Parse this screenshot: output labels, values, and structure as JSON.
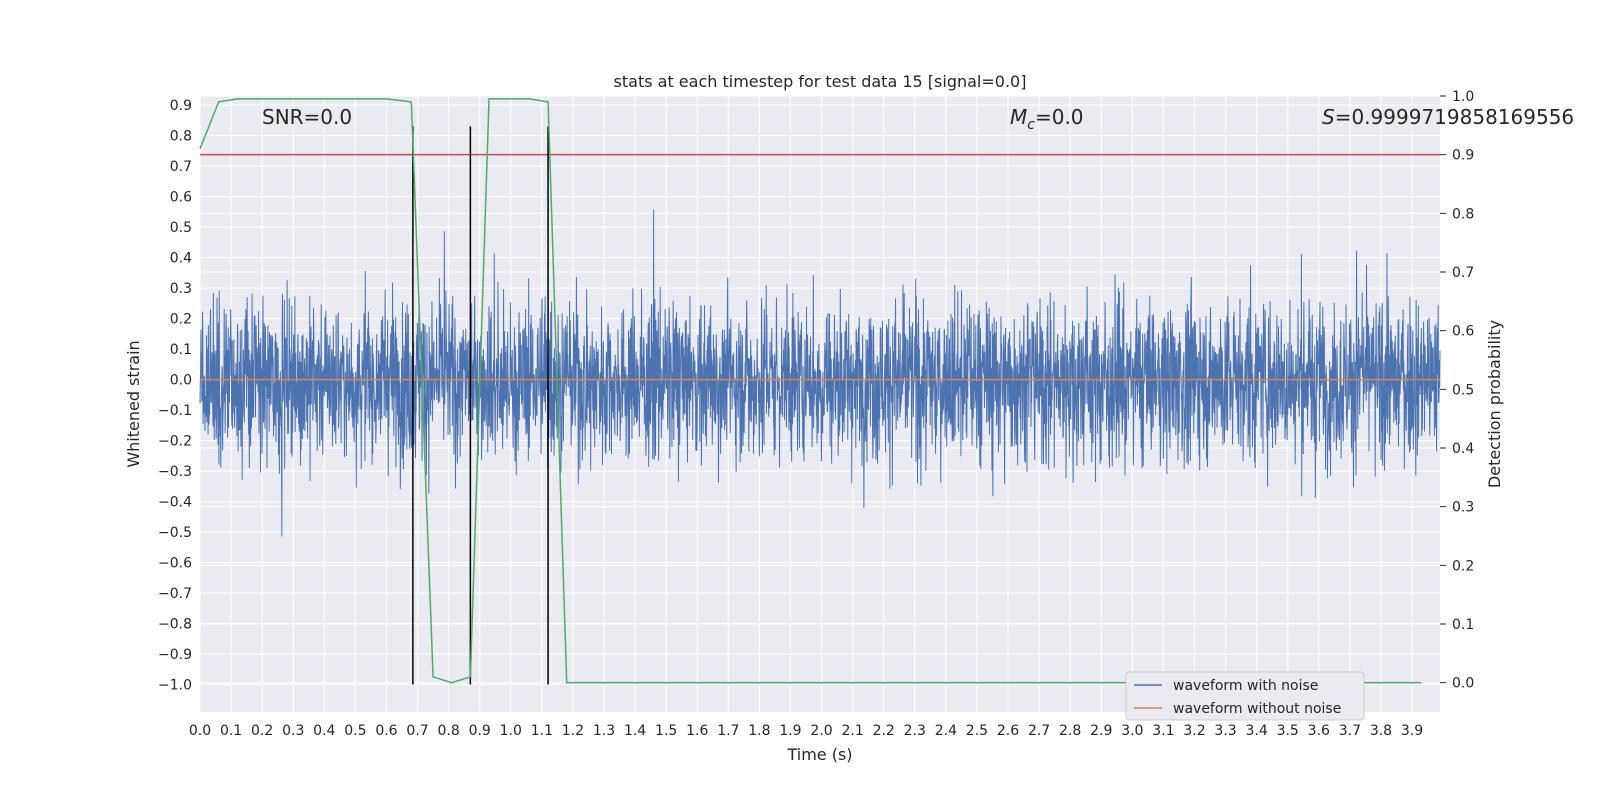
{
  "chart_data": {
    "type": "line",
    "title": "stats at each timestep for test data 15 [signal=0.0]",
    "xlabel": "Time (s)",
    "ylabel_left": "Whitened strain",
    "ylabel_right": "Detection probability",
    "xlim": [
      0.0,
      3.99
    ],
    "ylim_left": [
      -1.09,
      0.93
    ],
    "ylim_right": [
      -0.05,
      1.0
    ],
    "x_ticks": [
      "0.0",
      "0.1",
      "0.2",
      "0.3",
      "0.4",
      "0.5",
      "0.6",
      "0.7",
      "0.8",
      "0.9",
      "1.0",
      "1.1",
      "1.2",
      "1.3",
      "1.4",
      "1.5",
      "1.6",
      "1.7",
      "1.8",
      "1.9",
      "2.0",
      "2.1",
      "2.2",
      "2.3",
      "2.4",
      "2.5",
      "2.6",
      "2.7",
      "2.8",
      "2.9",
      "3.0",
      "3.1",
      "3.2",
      "3.3",
      "3.4",
      "3.5",
      "3.6",
      "3.7",
      "3.8",
      "3.9"
    ],
    "y_ticks_left": [
      "0.9",
      "0.8",
      "0.7",
      "0.6",
      "0.5",
      "0.4",
      "0.3",
      "0.2",
      "0.1",
      "0.0",
      "−0.1",
      "−0.2",
      "−0.3",
      "−0.4",
      "−0.5",
      "−0.6",
      "−0.7",
      "−0.8",
      "−0.9",
      "−1.0"
    ],
    "y_ticks_right": [
      "1.0",
      "0.9",
      "0.8",
      "0.7",
      "0.6",
      "0.5",
      "0.4",
      "0.3",
      "0.2",
      "0.1",
      "0.0"
    ],
    "annotations": {
      "snr": "SNR=0.0",
      "mc_symbol": "M",
      "mc_sub": "c",
      "mc_value": "=0.0",
      "s_symbol": "S",
      "s_value": "=0.9999719858169556"
    },
    "series": [
      {
        "name": "waveform with noise",
        "axis": "left",
        "color": "#4c72b0",
        "style": "noise",
        "amplitude_typical": 0.3,
        "amplitude_peak": 0.83,
        "x_range": [
          0.0,
          3.99
        ]
      },
      {
        "name": "waveform without noise",
        "axis": "left",
        "color": "#dd8452",
        "x": [
          0.0,
          3.99
        ],
        "y": [
          0.0,
          0.0
        ]
      },
      {
        "name": "detection probability",
        "axis": "right",
        "color": "#55a868",
        "x": [
          0.0,
          0.06,
          0.12,
          0.2,
          0.3,
          0.4,
          0.5,
          0.6,
          0.68,
          0.75,
          0.81,
          0.87,
          0.93,
          1.0,
          1.06,
          1.12,
          1.18,
          1.3,
          1.5,
          2.0,
          2.5,
          3.0,
          3.5,
          3.93
        ],
        "y": [
          0.91,
          0.99,
          0.995,
          0.995,
          0.995,
          0.995,
          0.995,
          0.995,
          0.99,
          0.01,
          0.0,
          0.01,
          0.995,
          0.995,
          0.995,
          0.99,
          0.0,
          0.0,
          0.0,
          0.0,
          0.0,
          0.0,
          0.0,
          0.0
        ]
      }
    ],
    "hlines": [
      {
        "axis": "right",
        "value": 0.9,
        "color": "#c44e52"
      }
    ],
    "vlines": [
      {
        "x": 0.685,
        "ymin": -1.0,
        "ymax": 0.83,
        "color": "#000000"
      },
      {
        "x": 0.87,
        "ymin": -1.0,
        "ymax": 0.83,
        "color": "#000000"
      },
      {
        "x": 1.12,
        "ymin": -1.0,
        "ymax": 0.83,
        "color": "#000000"
      }
    ],
    "legend": {
      "position": "bottom-right",
      "entries": [
        {
          "label": "waveform with noise",
          "color": "#4c72b0"
        },
        {
          "label": "waveform without noise",
          "color": "#dd8452"
        }
      ]
    }
  }
}
